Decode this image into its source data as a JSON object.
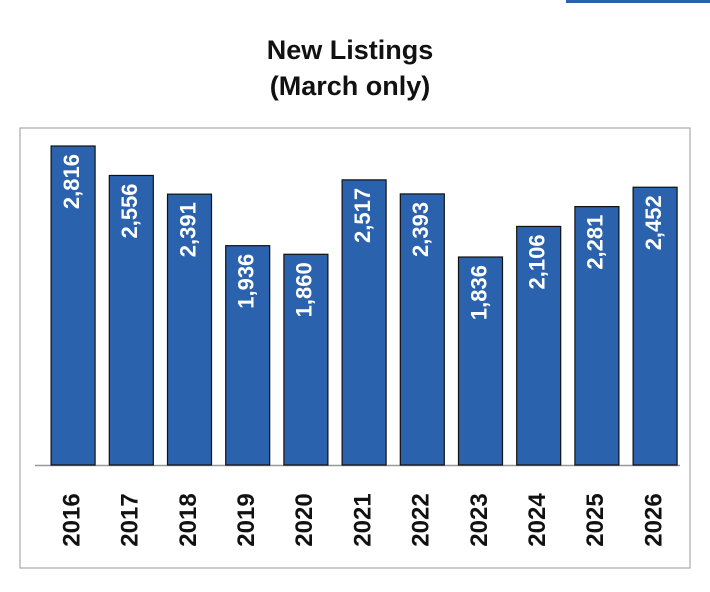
{
  "chart_data": {
    "type": "bar",
    "title": "New Listings",
    "subtitle": "(March only)",
    "categories": [
      "2016",
      "2017",
      "2018",
      "2019",
      "2020",
      "2021",
      "2022",
      "2023",
      "2024",
      "2025",
      "2026"
    ],
    "values": [
      2816,
      2556,
      2391,
      1936,
      1860,
      2517,
      2393,
      1836,
      2106,
      2281,
      2452
    ],
    "value_labels": [
      "2,816",
      "2,556",
      "2,391",
      "1,936",
      "1,860",
      "2,517",
      "2,393",
      "1,836",
      "2,106",
      "2,281",
      "2,452"
    ],
    "color": "#2a62ad"
  }
}
